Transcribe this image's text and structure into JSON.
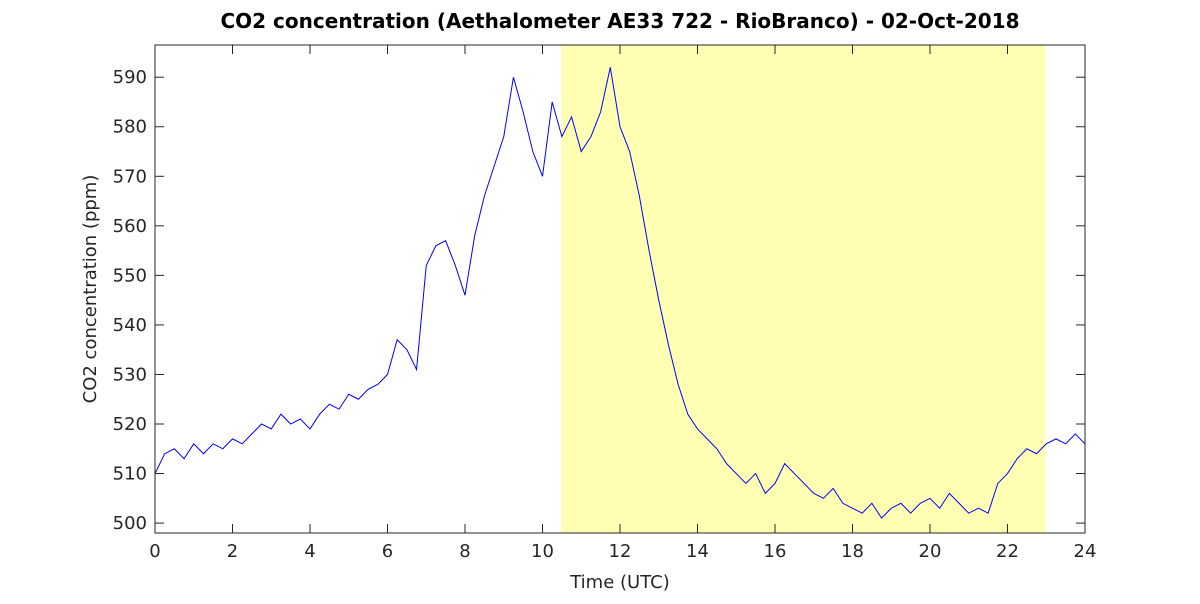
{
  "chart_data": {
    "type": "line",
    "title": "CO2 concentration (Aethalometer AE33 722 - RioBranco) - 02-Oct-2018",
    "xlabel": "Time (UTC)",
    "ylabel": "CO2 concentration (ppm)",
    "xlim": [
      0,
      24
    ],
    "xticks": [
      0,
      2,
      4,
      6,
      8,
      10,
      12,
      14,
      16,
      18,
      20,
      22,
      24
    ],
    "ylim": [
      498,
      596.5
    ],
    "yticks": [
      500,
      510,
      520,
      530,
      540,
      550,
      560,
      570,
      580,
      590
    ],
    "highlight_xlim": [
      10.48,
      22.97
    ],
    "highlight_color": "#ffffb3",
    "x": [
      0,
      0.25,
      0.5,
      0.75,
      1,
      1.25,
      1.5,
      1.75,
      2,
      2.25,
      2.5,
      2.75,
      3,
      3.25,
      3.5,
      3.75,
      4,
      4.25,
      4.5,
      4.75,
      5,
      5.25,
      5.5,
      5.75,
      6,
      6.25,
      6.5,
      6.75,
      7,
      7.25,
      7.5,
      7.75,
      8,
      8.25,
      8.5,
      8.75,
      9,
      9.25,
      9.5,
      9.75,
      10,
      10.25,
      10.5,
      10.75,
      11,
      11.25,
      11.5,
      11.75,
      12,
      12.25,
      12.5,
      12.75,
      13,
      13.25,
      13.5,
      13.75,
      14,
      14.25,
      14.5,
      14.75,
      15,
      15.25,
      15.5,
      15.75,
      16,
      16.25,
      16.5,
      16.75,
      17,
      17.25,
      17.5,
      17.75,
      18,
      18.25,
      18.5,
      18.75,
      19,
      19.25,
      19.5,
      19.75,
      20,
      20.25,
      20.5,
      20.75,
      21,
      21.25,
      21.5,
      21.75,
      22,
      22.25,
      22.5,
      22.75,
      23,
      23.25,
      23.5,
      23.75,
      24
    ],
    "series": [
      {
        "name": "CO2",
        "color": "#0000ff",
        "values": [
          510,
          514,
          515,
          513,
          516,
          514,
          516,
          515,
          517,
          516,
          518,
          520,
          519,
          522,
          520,
          521,
          519,
          522,
          524,
          523,
          526,
          525,
          527,
          528,
          530,
          537,
          535,
          531,
          552,
          556,
          557,
          552,
          546,
          558,
          566,
          572,
          578,
          590,
          583,
          575,
          570,
          585,
          578,
          582,
          575,
          578,
          583,
          592,
          580,
          575,
          566,
          555,
          545,
          536,
          528,
          522,
          519,
          517,
          515,
          512,
          510,
          508,
          510,
          506,
          508,
          512,
          510,
          508,
          506,
          505,
          507,
          504,
          503,
          502,
          504,
          501,
          503,
          504,
          502,
          504,
          505,
          503,
          506,
          504,
          502,
          503,
          502,
          508,
          510,
          513,
          515,
          514,
          516,
          517,
          516,
          518,
          516
        ]
      }
    ]
  }
}
